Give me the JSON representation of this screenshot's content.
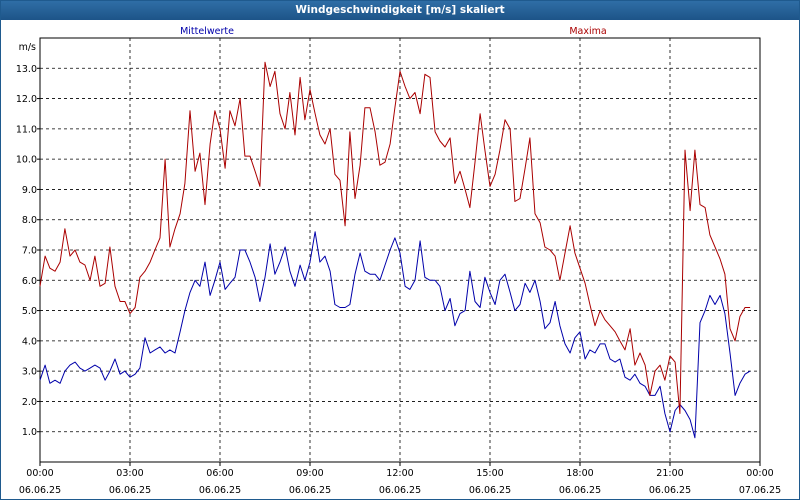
{
  "window": {
    "title": "Windgeschwindigkeit [m/s] skaliert"
  },
  "chart_data": {
    "type": "line",
    "title": "Windgeschwindigkeit [m/s] skaliert",
    "ylabel": "m/s",
    "ylim": [
      0,
      14
    ],
    "xlim_hours": [
      0,
      24
    ],
    "grid": true,
    "legend_placement": "top",
    "y_ticks": [
      "1.0",
      "2.0",
      "3.0",
      "4.0",
      "5.0",
      "6.0",
      "7.0",
      "8.0",
      "9.0",
      "10.0",
      "11.0",
      "12.0",
      "13.0"
    ],
    "x_ticks": [
      {
        "time": "00:00",
        "date": "06.06.25"
      },
      {
        "time": "03:00",
        "date": "06.06.25"
      },
      {
        "time": "06:00",
        "date": "06.06.25"
      },
      {
        "time": "09:00",
        "date": "06.06.25"
      },
      {
        "time": "12:00",
        "date": "06.06.25"
      },
      {
        "time": "15:00",
        "date": "06.06.25"
      },
      {
        "time": "18:00",
        "date": "06.06.25"
      },
      {
        "time": "21:00",
        "date": "06.06.25"
      },
      {
        "time": "00:00",
        "date": "07.06.25"
      }
    ],
    "series": [
      {
        "name": "Mittelwerte",
        "color": "#0000aa",
        "points": [
          [
            0.0,
            2.7
          ],
          [
            0.17,
            3.2
          ],
          [
            0.33,
            2.6
          ],
          [
            0.5,
            2.7
          ],
          [
            0.67,
            2.6
          ],
          [
            0.83,
            3.0
          ],
          [
            1.0,
            3.2
          ],
          [
            1.17,
            3.3
          ],
          [
            1.33,
            3.1
          ],
          [
            1.5,
            3.0
          ],
          [
            1.67,
            3.1
          ],
          [
            1.83,
            3.2
          ],
          [
            2.0,
            3.1
          ],
          [
            2.17,
            2.7
          ],
          [
            2.33,
            3.0
          ],
          [
            2.5,
            3.4
          ],
          [
            2.67,
            2.9
          ],
          [
            2.83,
            3.0
          ],
          [
            3.0,
            2.8
          ],
          [
            3.17,
            2.9
          ],
          [
            3.33,
            3.1
          ],
          [
            3.5,
            4.1
          ],
          [
            3.67,
            3.6
          ],
          [
            3.83,
            3.7
          ],
          [
            4.0,
            3.8
          ],
          [
            4.17,
            3.6
          ],
          [
            4.33,
            3.7
          ],
          [
            4.5,
            3.6
          ],
          [
            4.67,
            4.3
          ],
          [
            4.83,
            5.0
          ],
          [
            5.0,
            5.6
          ],
          [
            5.17,
            6.0
          ],
          [
            5.33,
            5.8
          ],
          [
            5.5,
            6.6
          ],
          [
            5.67,
            5.5
          ],
          [
            5.83,
            6.0
          ],
          [
            6.0,
            6.6
          ],
          [
            6.17,
            5.7
          ],
          [
            6.33,
            5.9
          ],
          [
            6.5,
            6.1
          ],
          [
            6.67,
            7.0
          ],
          [
            6.83,
            7.0
          ],
          [
            7.0,
            6.6
          ],
          [
            7.17,
            6.1
          ],
          [
            7.33,
            5.3
          ],
          [
            7.5,
            6.1
          ],
          [
            7.67,
            7.2
          ],
          [
            7.83,
            6.2
          ],
          [
            8.0,
            6.6
          ],
          [
            8.17,
            7.1
          ],
          [
            8.33,
            6.3
          ],
          [
            8.5,
            5.8
          ],
          [
            8.67,
            6.5
          ],
          [
            8.83,
            6.0
          ],
          [
            9.0,
            6.6
          ],
          [
            9.17,
            7.6
          ],
          [
            9.33,
            6.6
          ],
          [
            9.5,
            6.8
          ],
          [
            9.67,
            6.3
          ],
          [
            9.83,
            5.2
          ],
          [
            10.0,
            5.1
          ],
          [
            10.17,
            5.1
          ],
          [
            10.33,
            5.2
          ],
          [
            10.5,
            6.2
          ],
          [
            10.67,
            6.9
          ],
          [
            10.83,
            6.3
          ],
          [
            11.0,
            6.2
          ],
          [
            11.17,
            6.2
          ],
          [
            11.33,
            6.0
          ],
          [
            11.5,
            6.5
          ],
          [
            11.67,
            7.0
          ],
          [
            11.83,
            7.4
          ],
          [
            12.0,
            6.9
          ],
          [
            12.17,
            5.8
          ],
          [
            12.33,
            5.7
          ],
          [
            12.5,
            6.0
          ],
          [
            12.67,
            7.3
          ],
          [
            12.83,
            6.1
          ],
          [
            13.0,
            6.0
          ],
          [
            13.17,
            6.0
          ],
          [
            13.33,
            5.8
          ],
          [
            13.5,
            5.0
          ],
          [
            13.67,
            5.4
          ],
          [
            13.83,
            4.5
          ],
          [
            14.0,
            4.9
          ],
          [
            14.17,
            5.0
          ],
          [
            14.33,
            6.3
          ],
          [
            14.5,
            5.3
          ],
          [
            14.67,
            5.1
          ],
          [
            14.83,
            6.1
          ],
          [
            15.0,
            5.6
          ],
          [
            15.17,
            5.2
          ],
          [
            15.33,
            6.0
          ],
          [
            15.5,
            6.2
          ],
          [
            15.67,
            5.6
          ],
          [
            15.83,
            5.0
          ],
          [
            16.0,
            5.2
          ],
          [
            16.17,
            5.9
          ],
          [
            16.33,
            5.6
          ],
          [
            16.5,
            6.0
          ],
          [
            16.67,
            5.3
          ],
          [
            16.83,
            4.4
          ],
          [
            17.0,
            4.6
          ],
          [
            17.17,
            5.3
          ],
          [
            17.33,
            4.5
          ],
          [
            17.5,
            3.9
          ],
          [
            17.67,
            3.6
          ],
          [
            17.83,
            4.1
          ],
          [
            18.0,
            4.3
          ],
          [
            18.17,
            3.4
          ],
          [
            18.33,
            3.7
          ],
          [
            18.5,
            3.6
          ],
          [
            18.67,
            3.9
          ],
          [
            18.83,
            3.9
          ],
          [
            19.0,
            3.4
          ],
          [
            19.17,
            3.3
          ],
          [
            19.33,
            3.4
          ],
          [
            19.5,
            2.8
          ],
          [
            19.67,
            2.7
          ],
          [
            19.83,
            2.9
          ],
          [
            20.0,
            2.6
          ],
          [
            20.17,
            2.5
          ],
          [
            20.33,
            2.2
          ],
          [
            20.5,
            2.2
          ],
          [
            20.67,
            2.5
          ],
          [
            20.83,
            1.6
          ],
          [
            21.0,
            1.0
          ],
          [
            21.17,
            1.7
          ],
          [
            21.33,
            1.9
          ],
          [
            21.5,
            1.7
          ],
          [
            21.67,
            1.4
          ],
          [
            21.83,
            0.8
          ],
          [
            22.0,
            4.6
          ],
          [
            22.17,
            5.0
          ],
          [
            22.33,
            5.5
          ],
          [
            22.5,
            5.2
          ],
          [
            22.67,
            5.5
          ],
          [
            22.83,
            4.9
          ],
          [
            23.0,
            3.6
          ],
          [
            23.17,
            2.2
          ],
          [
            23.33,
            2.6
          ],
          [
            23.5,
            2.9
          ],
          [
            23.67,
            3.0
          ]
        ]
      },
      {
        "name": "Maxima",
        "color": "#aa0000",
        "points": [
          [
            0.0,
            5.8
          ],
          [
            0.17,
            6.8
          ],
          [
            0.33,
            6.4
          ],
          [
            0.5,
            6.3
          ],
          [
            0.67,
            6.6
          ],
          [
            0.83,
            7.7
          ],
          [
            1.0,
            6.8
          ],
          [
            1.17,
            7.0
          ],
          [
            1.33,
            6.6
          ],
          [
            1.5,
            6.5
          ],
          [
            1.67,
            6.0
          ],
          [
            1.83,
            6.8
          ],
          [
            2.0,
            5.8
          ],
          [
            2.17,
            5.9
          ],
          [
            2.33,
            7.1
          ],
          [
            2.5,
            5.8
          ],
          [
            2.67,
            5.3
          ],
          [
            2.83,
            5.3
          ],
          [
            3.0,
            4.9
          ],
          [
            3.17,
            5.1
          ],
          [
            3.33,
            6.1
          ],
          [
            3.5,
            6.3
          ],
          [
            3.67,
            6.6
          ],
          [
            3.83,
            7.0
          ],
          [
            4.0,
            7.4
          ],
          [
            4.17,
            10.0
          ],
          [
            4.33,
            7.1
          ],
          [
            4.5,
            7.7
          ],
          [
            4.67,
            8.2
          ],
          [
            4.83,
            9.2
          ],
          [
            5.0,
            11.6
          ],
          [
            5.17,
            9.6
          ],
          [
            5.33,
            10.2
          ],
          [
            5.5,
            8.5
          ],
          [
            5.67,
            10.5
          ],
          [
            5.83,
            11.6
          ],
          [
            6.0,
            11.0
          ],
          [
            6.17,
            9.7
          ],
          [
            6.33,
            11.6
          ],
          [
            6.5,
            11.1
          ],
          [
            6.67,
            12.0
          ],
          [
            6.83,
            10.1
          ],
          [
            7.0,
            10.1
          ],
          [
            7.17,
            9.6
          ],
          [
            7.33,
            9.1
          ],
          [
            7.5,
            13.2
          ],
          [
            7.67,
            12.4
          ],
          [
            7.83,
            12.9
          ],
          [
            8.0,
            11.5
          ],
          [
            8.17,
            11.0
          ],
          [
            8.33,
            12.2
          ],
          [
            8.5,
            10.8
          ],
          [
            8.67,
            12.7
          ],
          [
            8.83,
            11.3
          ],
          [
            9.0,
            12.3
          ],
          [
            9.17,
            11.5
          ],
          [
            9.33,
            10.8
          ],
          [
            9.5,
            10.5
          ],
          [
            9.67,
            11.0
          ],
          [
            9.83,
            9.5
          ],
          [
            10.0,
            9.3
          ],
          [
            10.17,
            7.8
          ],
          [
            10.33,
            10.9
          ],
          [
            10.5,
            8.7
          ],
          [
            10.67,
            9.8
          ],
          [
            10.83,
            11.7
          ],
          [
            11.0,
            11.7
          ],
          [
            11.17,
            10.9
          ],
          [
            11.33,
            9.8
          ],
          [
            11.5,
            9.9
          ],
          [
            11.67,
            10.5
          ],
          [
            11.83,
            11.7
          ],
          [
            12.0,
            12.9
          ],
          [
            12.17,
            12.4
          ],
          [
            12.33,
            12.0
          ],
          [
            12.5,
            12.2
          ],
          [
            12.67,
            11.5
          ],
          [
            12.83,
            12.8
          ],
          [
            13.0,
            12.7
          ],
          [
            13.17,
            10.9
          ],
          [
            13.33,
            10.6
          ],
          [
            13.5,
            10.4
          ],
          [
            13.67,
            10.7
          ],
          [
            13.83,
            9.2
          ],
          [
            14.0,
            9.6
          ],
          [
            14.17,
            9.0
          ],
          [
            14.33,
            8.4
          ],
          [
            14.5,
            9.9
          ],
          [
            14.67,
            11.5
          ],
          [
            14.83,
            10.3
          ],
          [
            15.0,
            9.1
          ],
          [
            15.17,
            9.5
          ],
          [
            15.33,
            10.3
          ],
          [
            15.5,
            11.3
          ],
          [
            15.67,
            11.0
          ],
          [
            15.83,
            8.6
          ],
          [
            16.0,
            8.7
          ],
          [
            16.17,
            9.7
          ],
          [
            16.33,
            10.7
          ],
          [
            16.5,
            8.2
          ],
          [
            16.67,
            7.9
          ],
          [
            16.83,
            7.1
          ],
          [
            17.0,
            7.0
          ],
          [
            17.17,
            6.8
          ],
          [
            17.33,
            6.0
          ],
          [
            17.5,
            6.9
          ],
          [
            17.67,
            7.8
          ],
          [
            17.83,
            6.9
          ],
          [
            18.0,
            6.4
          ],
          [
            18.17,
            5.9
          ],
          [
            18.33,
            5.2
          ],
          [
            18.5,
            4.5
          ],
          [
            18.67,
            5.0
          ],
          [
            18.83,
            4.7
          ],
          [
            19.0,
            4.5
          ],
          [
            19.17,
            4.3
          ],
          [
            19.33,
            4.0
          ],
          [
            19.5,
            3.7
          ],
          [
            19.67,
            4.4
          ],
          [
            19.83,
            3.2
          ],
          [
            20.0,
            3.6
          ],
          [
            20.17,
            3.2
          ],
          [
            20.33,
            2.2
          ],
          [
            20.5,
            3.0
          ],
          [
            20.67,
            3.2
          ],
          [
            20.83,
            2.7
          ],
          [
            21.0,
            3.5
          ],
          [
            21.17,
            3.3
          ],
          [
            21.33,
            1.6
          ],
          [
            21.5,
            10.3
          ],
          [
            21.67,
            8.3
          ],
          [
            21.83,
            10.3
          ],
          [
            22.0,
            8.5
          ],
          [
            22.17,
            8.4
          ],
          [
            22.33,
            7.5
          ],
          [
            22.5,
            7.1
          ],
          [
            22.67,
            6.7
          ],
          [
            22.83,
            6.2
          ],
          [
            23.0,
            4.4
          ],
          [
            23.17,
            4.0
          ],
          [
            23.33,
            4.8
          ],
          [
            23.5,
            5.1
          ],
          [
            23.67,
            5.1
          ]
        ]
      }
    ]
  }
}
